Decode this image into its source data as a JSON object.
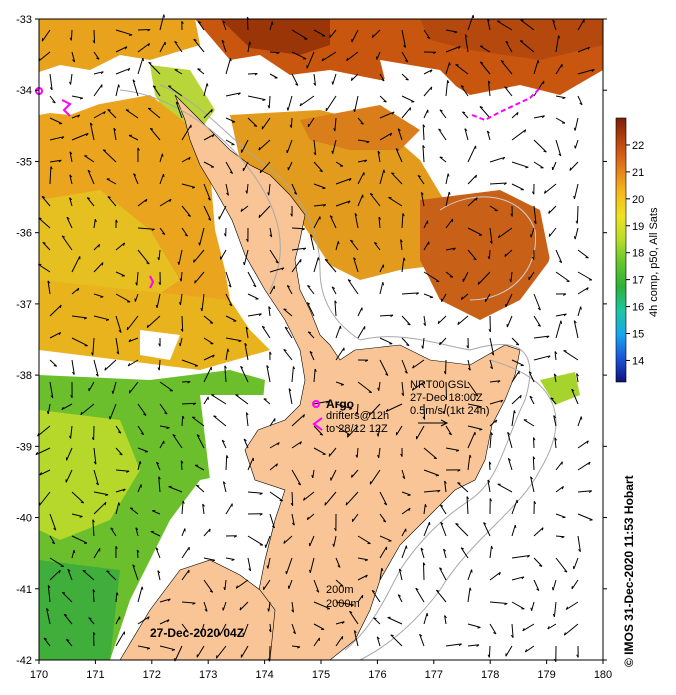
{
  "map": {
    "axes": {
      "longitude_labels": [
        "170",
        "171",
        "172",
        "173",
        "174",
        "175",
        "176",
        "177",
        "178",
        "179",
        "180"
      ],
      "latitude_labels": [
        "-33",
        "-34",
        "-35",
        "-36",
        "-37",
        "-38",
        "-39",
        "-40",
        "-41",
        "-42"
      ]
    },
    "annotations": {
      "argo_label": "Argo",
      "drifters_line1": "drifters@12h",
      "drifters_line2": "to 28/12 12Z",
      "current_source": "NRT00 GSL",
      "current_time": "27-Dec 18:00Z",
      "current_scale": "0.5m/s (1kt 24h)",
      "contour_200": "200m",
      "contour_2000": "2000m",
      "image_date": "27-Dec-2020 04Z",
      "credit": "© IMOS 31-Dec-2020 11:53 Hobart"
    },
    "colorbar": {
      "title": "4h comp, p50, All Sats",
      "ticks": [
        "22",
        "21",
        "20",
        "19",
        "18",
        "17",
        "16",
        "15",
        "14"
      ],
      "range": [
        13.2,
        23.0
      ],
      "colors": [
        "#10107a",
        "#1b55d8",
        "#18a6ee",
        "#1bc7a0",
        "#2fb03a",
        "#63c62a",
        "#b9dd2a",
        "#efe220",
        "#f4b81c",
        "#e47c19",
        "#c24a10",
        "#7d1f08"
      ]
    },
    "legend_colors": {
      "land": "#f9c597",
      "argo": "#ff00ff",
      "arrows": "#000000",
      "contours": "#a8a8a8"
    }
  }
}
